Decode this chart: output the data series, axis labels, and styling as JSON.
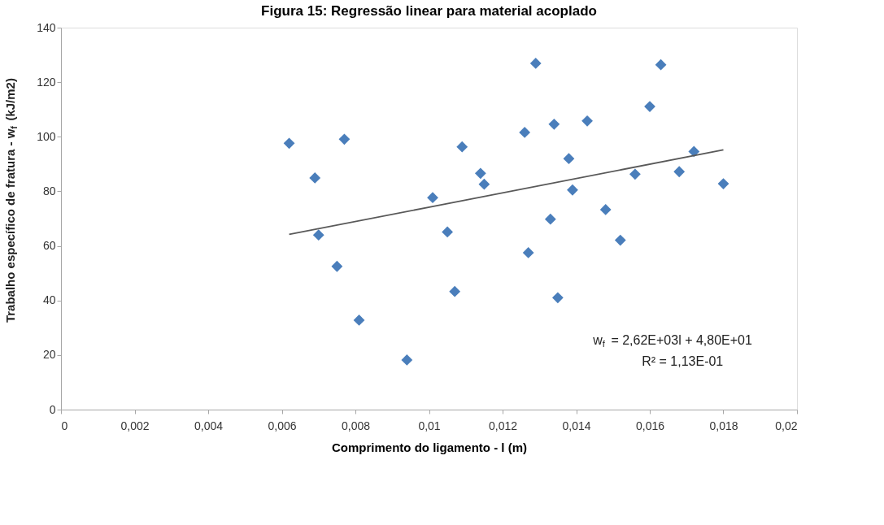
{
  "chart_data": {
    "type": "scatter",
    "title": "Figura 15: Regressão linear para material acoplado",
    "xlabel": "Comprimento do ligamento - l (m)",
    "ylabel": "Trabalho específico de fratura - w$_{f}$ (kJ/m2)",
    "xlim": [
      0,
      0.02
    ],
    "xticks": [
      0,
      {
        "value": 0.002,
        "label": "0,002"
      },
      {
        "value": 0.004,
        "label": "0,004"
      },
      {
        "value": 0.006,
        "label": "0,006"
      },
      {
        "value": 0.008,
        "label": "0,008"
      },
      {
        "value": 0.01,
        "label": "0,01"
      },
      {
        "value": 0.012,
        "label": "0,012"
      },
      {
        "value": 0.014,
        "label": "0,014"
      },
      {
        "value": 0.016,
        "label": "0,016"
      },
      {
        "value": 0.018,
        "label": "0,018"
      },
      {
        "value": 0.02,
        "label": "0,02"
      }
    ],
    "ylim": [
      0,
      140
    ],
    "yticks": [
      0,
      20,
      40,
      60,
      80,
      100,
      120,
      140
    ],
    "grid": false,
    "legend": false,
    "series": [
      {
        "marker": "diamond",
        "color": "#4a7ebb",
        "x": [
          0.0062,
          0.0077,
          0.0069,
          0.007,
          0.0075,
          0.0081,
          0.0094,
          0.0101,
          0.0129,
          0.0163,
          0.016,
          0.0134,
          0.0143,
          0.0126,
          0.0109,
          0.0138,
          0.0114,
          0.0115,
          0.0156,
          0.0168,
          0.0172,
          0.018,
          0.0139,
          0.0148,
          0.0133,
          0.0105,
          0.0152,
          0.0127,
          0.0107,
          0.0135
        ],
        "values": [
          97.6,
          99.1,
          84.9,
          64.0,
          52.5,
          32.8,
          18.2,
          77.7,
          126.9,
          126.4,
          111.1,
          104.6,
          105.8,
          101.6,
          96.3,
          92.0,
          86.6,
          82.6,
          86.3,
          87.2,
          94.6,
          82.8,
          80.5,
          73.3,
          69.8,
          65.1,
          62.1,
          57.5,
          43.3,
          41.0
        ]
      },
      {
        "type": "line",
        "marker": "none",
        "color": "#595959",
        "x": [
          0.0062,
          0.018
        ],
        "values": [
          64.2,
          95.2
        ]
      }
    ],
    "annotations": [
      "w$_{f}$ = 2,62E+03l + 4,80E+01",
      "R² = 1,13E-01"
    ]
  }
}
